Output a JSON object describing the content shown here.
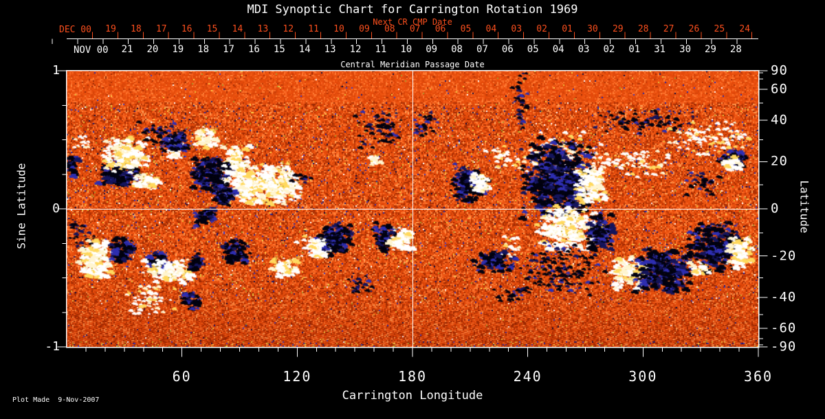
{
  "header": {
    "title": "MDI Synoptic Chart for Carrington Rotation 1969",
    "next_cr_label": "Next CR CMP Date",
    "cmp_label": "Central Meridian Passage Date"
  },
  "date_axes": {
    "dec": {
      "month_label": "DEC 00",
      "days": [
        "19",
        "18",
        "17",
        "16",
        "15",
        "14",
        "13",
        "12",
        "11",
        "10",
        "09",
        "08",
        "07",
        "06",
        "05",
        "04",
        "03",
        "02",
        "01",
        "30",
        "29",
        "28",
        "27",
        "26",
        "25",
        "24"
      ]
    },
    "nov": {
      "month_label": "NOV 00",
      "days": [
        "21",
        "20",
        "19",
        "18",
        "17",
        "16",
        "15",
        "14",
        "13",
        "12",
        "11",
        "10",
        "09",
        "08",
        "07",
        "06",
        "05",
        "04",
        "03",
        "02",
        "01",
        "31",
        "30",
        "29",
        "28"
      ]
    }
  },
  "axis_titles": {
    "left": "Sine Latitude",
    "right": "Latitude",
    "bottom": "Carrington Longitude"
  },
  "footer": {
    "plot_made": "Plot Made  9-Nov-2007"
  },
  "colors": {
    "background": "#000000",
    "text": "#ffffff",
    "accent_red": "#fc4f1d",
    "map_base_orange": "#ea520f",
    "negative_polarity": "#020210",
    "positive_polarity": "#ffffff",
    "blue_speckle": "#2a2aa8",
    "yellow_speckle": "#ffd24a"
  },
  "chart_data": {
    "type": "heatmap",
    "title": "MDI Synoptic Chart for Carrington Rotation 1969",
    "xlabel": "Carrington Longitude",
    "ylabel_left": "Sine Latitude",
    "ylabel_right": "Latitude",
    "x_range": [
      0,
      360
    ],
    "x_major_ticks": [
      60,
      120,
      180,
      240,
      300,
      360
    ],
    "x_minor_step_deg": 10,
    "y_range_sine_latitude": [
      -1,
      1
    ],
    "y_left_major_ticks": [
      1,
      0,
      -1
    ],
    "y_left_minor_ticks": [
      0.75,
      0.5,
      0.25,
      -0.25,
      -0.5,
      -0.75
    ],
    "y_right_major_ticks_deg": [
      90,
      60,
      40,
      20,
      0,
      -20,
      -40,
      -60,
      -90
    ],
    "y_right_minor_ticks_deg": [
      80,
      70,
      50,
      30,
      10,
      -10,
      -30,
      -50,
      -70,
      -80
    ],
    "grid_lines": {
      "longitude_deg": 180,
      "latitude_deg": 0
    },
    "legend": "none",
    "grid": "equator and 180-degree meridian only",
    "seed": 1969,
    "active_regions": [
      [
        26.8,
        0.27,
        17.9,
        0.16,
        "n"
      ],
      [
        29.7,
        0.4,
        19.0,
        0.2,
        "p"
      ],
      [
        40.4,
        0.22,
        11.8,
        0.1,
        "p"
      ],
      [
        48.3,
        0.54,
        17.9,
        0.2,
        "ns"
      ],
      [
        54.8,
        0.44,
        7.2,
        0.13,
        "p"
      ],
      [
        55.8,
        0.49,
        11.8,
        0.13,
        "n"
      ],
      [
        71.2,
        0.52,
        10.0,
        0.12,
        "p"
      ],
      [
        87.0,
        0.37,
        11.8,
        0.16,
        "p"
      ],
      [
        74.8,
        0.25,
        16.8,
        0.21,
        "n"
      ],
      [
        94.1,
        0.19,
        24.0,
        0.23,
        "p"
      ],
      [
        80.9,
        0.12,
        9.7,
        0.16,
        "n"
      ],
      [
        110.2,
        0.19,
        17.9,
        0.23,
        "p"
      ],
      [
        122.7,
        0.23,
        9.7,
        0.08,
        "ns"
      ],
      [
        162.8,
        0.59,
        20.0,
        0.23,
        "ns"
      ],
      [
        159.2,
        0.36,
        5.7,
        0.05,
        "p"
      ],
      [
        2.1,
        0.33,
        4.7,
        0.12,
        "n"
      ],
      [
        8.2,
        0.49,
        9.7,
        0.1,
        "ps"
      ],
      [
        185.7,
        0.62,
        11.8,
        0.16,
        "ns"
      ],
      [
        208.6,
        0.19,
        14.3,
        0.23,
        "n"
      ],
      [
        214.0,
        0.19,
        8.6,
        0.13,
        "p"
      ],
      [
        226.5,
        0.38,
        14.3,
        0.15,
        "ps"
      ],
      [
        257.3,
        0.4,
        31.1,
        0.27,
        "ps"
      ],
      [
        254.1,
        0.23,
        28.6,
        0.45,
        "n"
      ],
      [
        272.3,
        0.19,
        13.2,
        0.23,
        "p"
      ],
      [
        293.4,
        0.34,
        35.8,
        0.16,
        "ps"
      ],
      [
        302.0,
        0.64,
        41.9,
        0.15,
        "ns"
      ],
      [
        335.0,
        0.52,
        35.8,
        0.2,
        "ps"
      ],
      [
        344.6,
        0.36,
        12.2,
        0.11,
        "n"
      ],
      [
        345.3,
        0.34,
        7.5,
        0.1,
        "p"
      ],
      [
        330.7,
        0.2,
        15.4,
        0.17,
        "ns"
      ],
      [
        235.5,
        0.81,
        7.2,
        0.37,
        "ns"
      ],
      [
        8.2,
        -0.18,
        11.8,
        0.16,
        "ns"
      ],
      [
        14.3,
        -0.36,
        14.3,
        0.23,
        "p"
      ],
      [
        28.3,
        -0.29,
        9.7,
        0.16,
        "n"
      ],
      [
        46.9,
        -0.39,
        13.2,
        0.13,
        "n"
      ],
      [
        51.5,
        -0.44,
        20.4,
        0.13,
        "p"
      ],
      [
        66.6,
        -0.39,
        7.2,
        0.12,
        "n"
      ],
      [
        42.9,
        -0.65,
        21.5,
        0.2,
        "ps"
      ],
      [
        63.7,
        -0.66,
        8.6,
        0.1,
        "n"
      ],
      [
        85.5,
        -0.3,
        9.7,
        0.15,
        "n"
      ],
      [
        71.2,
        -0.05,
        10.0,
        0.1,
        "n"
      ],
      [
        87.7,
        -0.26,
        10.7,
        0.13,
        "ns"
      ],
      [
        113.1,
        -0.41,
        11.8,
        0.1,
        "p"
      ],
      [
        135.3,
        -0.24,
        10.7,
        0.18,
        "n"
      ],
      [
        131.0,
        -0.27,
        9.7,
        0.11,
        "p"
      ],
      [
        127.0,
        -0.25,
        12.9,
        0.17,
        "ps"
      ],
      [
        140.6,
        -0.2,
        11.8,
        0.17,
        "n"
      ],
      [
        164.6,
        -0.2,
        9.3,
        0.17,
        "n"
      ],
      [
        173.6,
        -0.22,
        10.7,
        0.15,
        "p"
      ],
      [
        152.4,
        -0.53,
        11.8,
        0.13,
        "ns"
      ],
      [
        260.5,
        -0.13,
        25.0,
        0.26,
        "p"
      ],
      [
        277.7,
        -0.16,
        11.8,
        0.23,
        "n"
      ],
      [
        221.5,
        -0.37,
        16.8,
        0.12,
        "n"
      ],
      [
        231.9,
        -0.26,
        10.7,
        0.15,
        "ps"
      ],
      [
        257.7,
        -0.43,
        35.8,
        0.3,
        "ns"
      ],
      [
        292.0,
        -0.46,
        14.3,
        0.2,
        "p"
      ],
      [
        308.8,
        -0.43,
        23.6,
        0.26,
        "n"
      ],
      [
        336.4,
        -0.27,
        21.5,
        0.28,
        "n"
      ],
      [
        350.0,
        -0.31,
        10.7,
        0.2,
        "p"
      ],
      [
        328.5,
        -0.42,
        8.6,
        0.08,
        "p"
      ],
      [
        231.9,
        -0.61,
        20.0,
        0.1,
        "ns"
      ]
    ]
  }
}
